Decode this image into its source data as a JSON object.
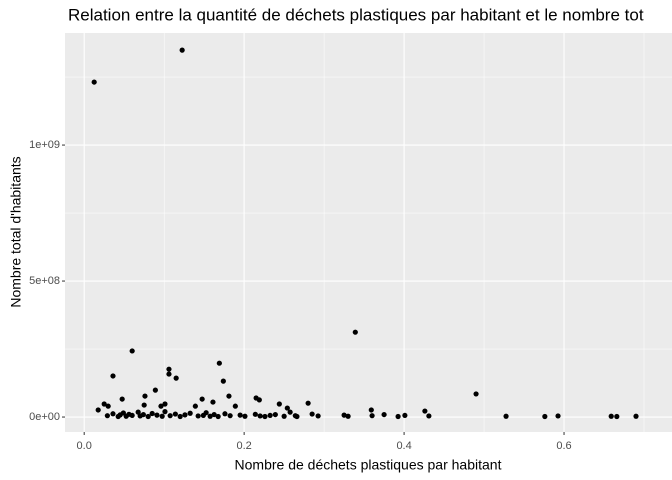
{
  "chart_data": {
    "type": "scatter",
    "title": "Relation entre la quantité de déchets plastiques par habitant et le nombre tot",
    "x_label": "Nombre de déchets plastiques par habitant",
    "y_label": "Nombre total d'habitants",
    "color": "#000000",
    "grid": true,
    "xlim": [
      -0.024,
      0.735
    ],
    "ylim": [
      -55000000,
      1412000000
    ],
    "xticks": [
      {
        "value": 0,
        "label": "0.0"
      },
      0.2,
      0.4,
      0.6
    ],
    "yticks": [
      {
        "value": 0,
        "label": "0e+00"
      },
      {
        "value": 500000000,
        "label": "5e+08"
      },
      {
        "value": 1000000000,
        "label": "1e+09"
      }
    ],
    "x": [
      0.0125,
      0.1225,
      0.339,
      0.06,
      0.169,
      0.106,
      0.106,
      0.115,
      0.036,
      0.174,
      0.089,
      0.49,
      0.076,
      0.181,
      0.215,
      0.219,
      0.1475,
      0.0475,
      0.161,
      0.28,
      0.244,
      0.025,
      0.03,
      0.096,
      0.101,
      0.189,
      0.254,
      0.359,
      0.426,
      0.075,
      0.139,
      0.0175,
      0.029,
      0.036,
      0.0425,
      0.045,
      0.049,
      0.0525,
      0.056,
      0.06,
      0.0675,
      0.07,
      0.074,
      0.08,
      0.085,
      0.091,
      0.0975,
      0.101,
      0.1075,
      0.114,
      0.12,
      0.126,
      0.1325,
      0.1425,
      0.149,
      0.1525,
      0.1575,
      0.1625,
      0.1675,
      0.176,
      0.1825,
      0.195,
      0.201,
      0.214,
      0.22,
      0.226,
      0.2325,
      0.239,
      0.25,
      0.2575,
      0.264,
      0.266,
      0.285,
      0.2925,
      0.325,
      0.33,
      0.36,
      0.375,
      0.3925,
      0.401,
      0.431,
      0.5275,
      0.576,
      0.5925,
      0.659,
      0.666,
      0.69
    ],
    "values": [
      1231500000,
      1349000000,
      312000000,
      243000000,
      198000000,
      176000000,
      158000000,
      143000000,
      151000000,
      132000000,
      99000000,
      85000000,
      77000000,
      77000000,
      70000000,
      63000000,
      66000000,
      66000000,
      55000000,
      51000000,
      48000000,
      48000000,
      40000000,
      40000000,
      48000000,
      40000000,
      33000000,
      26000000,
      22000000,
      44000000,
      40000000,
      26000000,
      5000000,
      12000000,
      2000000,
      8000000,
      15000000,
      3000000,
      10000000,
      6000000,
      18000000,
      4000000,
      9000000,
      2000000,
      13000000,
      7000000,
      3000000,
      20000000,
      5000000,
      11000000,
      2000000,
      8000000,
      14000000,
      4000000,
      6000000,
      16000000,
      3000000,
      9000000,
      2000000,
      12000000,
      5000000,
      7000000,
      3000000,
      10000000,
      4000000,
      2000000,
      6000000,
      9000000,
      3000000,
      18000000,
      5000000,
      2000000,
      11000000,
      4000000,
      7000000,
      3000000,
      5000000,
      9000000,
      2000000,
      6000000,
      4000000,
      3000000,
      2000000,
      4000000,
      3000000,
      2000000,
      3000000
    ]
  }
}
